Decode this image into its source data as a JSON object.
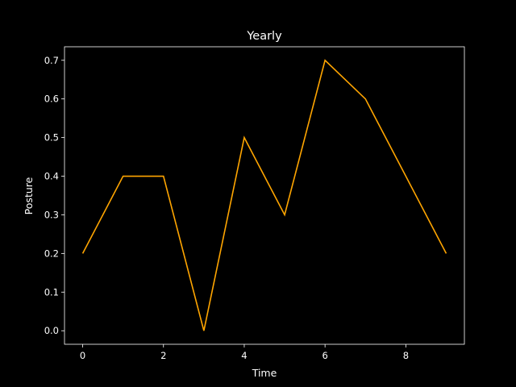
{
  "chart_data": {
    "type": "line",
    "title": "Yearly",
    "xlabel": "Time",
    "ylabel": "Posture",
    "x": [
      0,
      1,
      2,
      3,
      4,
      5,
      6,
      7,
      8,
      9
    ],
    "series": [
      {
        "values": [
          0.2,
          0.4,
          0.4,
          0.0,
          0.5,
          0.3,
          0.7,
          0.6,
          0.4,
          0.2
        ]
      }
    ],
    "xlim": [
      -0.45,
      9.45
    ],
    "ylim": [
      -0.035,
      0.735
    ],
    "xticks": [
      0,
      2,
      4,
      6,
      8
    ],
    "yticks": [
      0.0,
      0.1,
      0.2,
      0.3,
      0.4,
      0.5,
      0.6,
      0.7
    ],
    "ytick_labels": [
      "0.0",
      "0.1",
      "0.2",
      "0.3",
      "0.4",
      "0.5",
      "0.6",
      "0.7"
    ],
    "grid": false,
    "colors": {
      "background": "#000000",
      "line": "#ffa500",
      "axes": "#ffffff"
    }
  }
}
